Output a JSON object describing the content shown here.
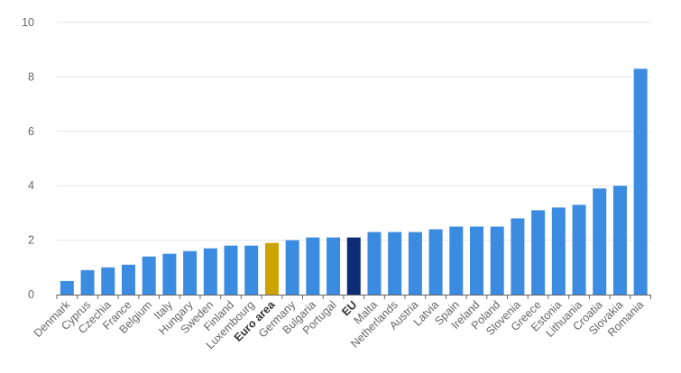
{
  "chart_data": {
    "type": "bar",
    "title": "",
    "xlabel": "",
    "ylabel": "",
    "ylim": [
      0,
      10
    ],
    "yticks": [
      0,
      2,
      4,
      6,
      8,
      10
    ],
    "grid": true,
    "categories": [
      "Denmark",
      "Cyprus",
      "Czechia",
      "France",
      "Belgium",
      "Italy",
      "Hungary",
      "Sweden",
      "Finland",
      "Luxembourg",
      "Euro area",
      "Germany",
      "Bulgaria",
      "Portugal",
      "EU",
      "Malta",
      "Netherlands",
      "Austria",
      "Latvia",
      "Spain",
      "Ireland",
      "Poland",
      "Slovenia",
      "Greece",
      "Estonia",
      "Lithuania",
      "Croatia",
      "Slovakia",
      "Romania"
    ],
    "values": [
      0.5,
      0.9,
      1.0,
      1.1,
      1.4,
      1.5,
      1.6,
      1.7,
      1.8,
      1.8,
      1.9,
      2.0,
      2.1,
      2.1,
      2.1,
      2.3,
      2.3,
      2.3,
      2.4,
      2.5,
      2.5,
      2.5,
      2.8,
      3.1,
      3.2,
      3.3,
      3.9,
      4.0,
      8.3
    ],
    "highlight": {
      "Euro area": "#cca300",
      "EU": "#0e2c73"
    },
    "bold_categories": [
      "Euro area",
      "EU"
    ],
    "colors": {
      "default_bar": "#3b8be0",
      "grid": "#e6e6e6",
      "axis": "#666666"
    }
  }
}
